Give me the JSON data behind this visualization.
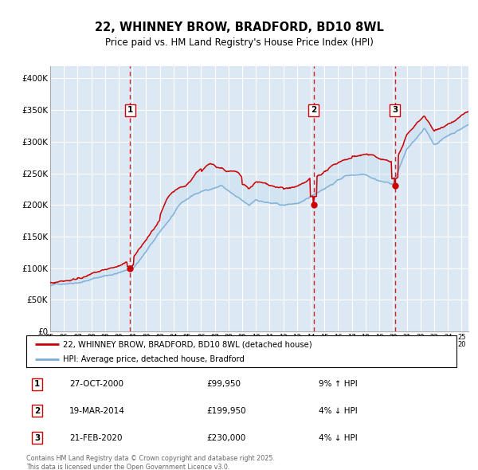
{
  "title1": "22, WHINNEY BROW, BRADFORD, BD10 8WL",
  "title2": "Price paid vs. HM Land Registry's House Price Index (HPI)",
  "bg_color": "#dce9f5",
  "red_line_label": "22, WHINNEY BROW, BRADFORD, BD10 8WL (detached house)",
  "blue_line_label": "HPI: Average price, detached house, Bradford",
  "footer": "Contains HM Land Registry data © Crown copyright and database right 2025.\nThis data is licensed under the Open Government Licence v3.0.",
  "sales": [
    {
      "num": 1,
      "date": "27-OCT-2000",
      "price": 99950,
      "pct": "9%",
      "dir": "↑",
      "x": 2000.83
    },
    {
      "num": 2,
      "date": "19-MAR-2014",
      "price": 199950,
      "pct": "4%",
      "dir": "↓",
      "x": 2014.21
    },
    {
      "num": 3,
      "date": "21-FEB-2020",
      "price": 230000,
      "pct": "4%",
      "dir": "↓",
      "x": 2020.13
    }
  ],
  "ylim": [
    0,
    420000
  ],
  "yticks": [
    0,
    50000,
    100000,
    150000,
    200000,
    250000,
    300000,
    350000,
    400000
  ],
  "ytick_labels": [
    "£0",
    "£50K",
    "£100K",
    "£150K",
    "£200K",
    "£250K",
    "£300K",
    "£350K",
    "£400K"
  ],
  "xlim": [
    1995.0,
    2025.5
  ],
  "xtick_years": [
    1995,
    1996,
    1997,
    1998,
    1999,
    2000,
    2001,
    2002,
    2003,
    2004,
    2005,
    2006,
    2007,
    2008,
    2009,
    2010,
    2011,
    2012,
    2013,
    2014,
    2015,
    2016,
    2017,
    2018,
    2019,
    2020,
    2021,
    2022,
    2023,
    2024,
    2025
  ],
  "red_color": "#cc0000",
  "blue_color": "#7aadd4",
  "dashed_color": "#cc0000",
  "marker_color": "#cc0000",
  "grid_color": "#ffffff",
  "noise_seed": 42
}
